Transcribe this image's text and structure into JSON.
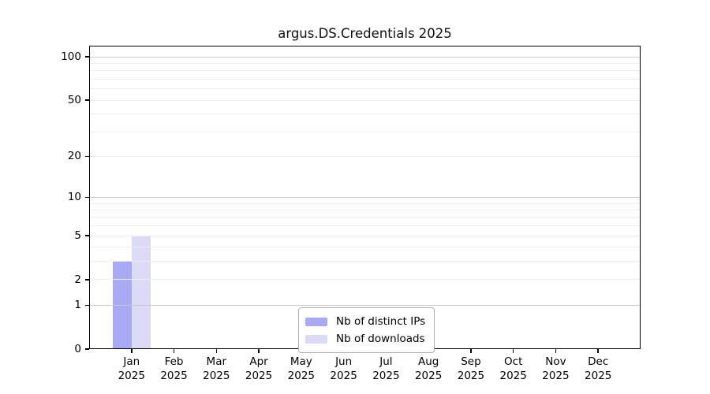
{
  "chart_data": {
    "type": "bar",
    "title": "argus.DS.Credentials 2025",
    "categories": [
      "Jan",
      "Feb",
      "Mar",
      "Apr",
      "May",
      "Jun",
      "Jul",
      "Aug",
      "Sep",
      "Oct",
      "Nov",
      "Dec"
    ],
    "x_year_label": "2025",
    "series": [
      {
        "name": "Nb of distinct IPs",
        "color": "#a9a9f4",
        "values": [
          3,
          0,
          0,
          0,
          0,
          0,
          0,
          0,
          0,
          0,
          0,
          0
        ]
      },
      {
        "name": "Nb of downloads",
        "color": "#dbdbf7",
        "values": [
          5,
          0,
          0,
          0,
          0,
          0,
          0,
          0,
          0,
          0,
          0,
          0
        ]
      }
    ],
    "y_axis": {
      "scale": "log1p",
      "tick_labels": [
        "0",
        "1",
        "2",
        "5",
        "10",
        "20",
        "50",
        "100"
      ],
      "tick_values": [
        0,
        1,
        2,
        5,
        10,
        20,
        50,
        100
      ],
      "minor_gridline_values": [
        3,
        4,
        6,
        7,
        8,
        9,
        30,
        40,
        60,
        70,
        80,
        90
      ],
      "decade_gridline_values": [
        1,
        10,
        100
      ]
    },
    "grid": "on",
    "legend_position": "lower center",
    "colors": {
      "bar_distinct_ips": "#a9a9f4",
      "bar_downloads": "#dbdbf7",
      "gridline_minor": "#ececec",
      "gridline_decade": "#c9c9c9",
      "axis_frame": "#000000",
      "legend_border": "#b0b0b0",
      "background": "#ffffff"
    }
  }
}
